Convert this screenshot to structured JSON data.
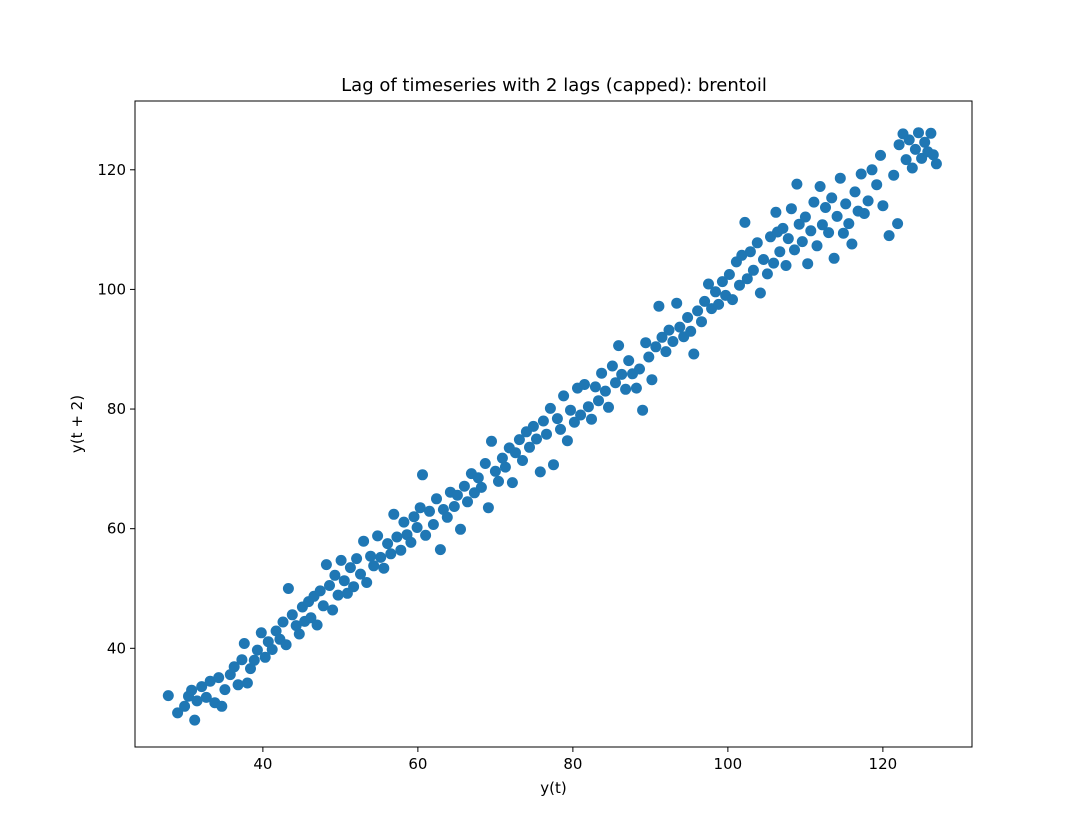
{
  "chart_data": {
    "type": "scatter",
    "title": "Lag of timeseries with 2 lags (capped):  brentoil",
    "xlabel": "y(t)",
    "ylabel": "y(t + 2)",
    "xlim": [
      23.5,
      131.5
    ],
    "ylim": [
      23.5,
      131.5
    ],
    "xticks": [
      40,
      60,
      80,
      100,
      120
    ],
    "yticks": [
      40,
      60,
      80,
      100,
      120
    ],
    "grid": false,
    "color": "#1f77b4",
    "series": [
      {
        "points": [
          [
            27.8,
            32.1
          ],
          [
            29.0,
            29.2
          ],
          [
            29.9,
            30.3
          ],
          [
            30.4,
            32.0
          ],
          [
            30.8,
            33.0
          ],
          [
            31.2,
            28.0
          ],
          [
            31.5,
            31.2
          ],
          [
            32.1,
            33.6
          ],
          [
            32.7,
            31.8
          ],
          [
            33.2,
            34.5
          ],
          [
            33.8,
            30.9
          ],
          [
            34.3,
            35.1
          ],
          [
            34.7,
            30.3
          ],
          [
            35.1,
            33.1
          ],
          [
            35.8,
            35.6
          ],
          [
            36.3,
            36.9
          ],
          [
            36.8,
            33.9
          ],
          [
            37.3,
            38.1
          ],
          [
            37.6,
            40.8
          ],
          [
            38.0,
            34.2
          ],
          [
            38.4,
            36.6
          ],
          [
            38.9,
            38.0
          ],
          [
            39.3,
            39.7
          ],
          [
            39.8,
            42.6
          ],
          [
            40.3,
            38.5
          ],
          [
            40.7,
            41.1
          ],
          [
            41.2,
            39.8
          ],
          [
            41.7,
            42.9
          ],
          [
            42.2,
            41.5
          ],
          [
            42.6,
            44.4
          ],
          [
            43.0,
            40.6
          ],
          [
            43.3,
            50.0
          ],
          [
            43.8,
            45.6
          ],
          [
            44.3,
            43.8
          ],
          [
            44.7,
            42.4
          ],
          [
            45.1,
            46.9
          ],
          [
            45.4,
            44.5
          ],
          [
            45.9,
            47.8
          ],
          [
            46.2,
            45.1
          ],
          [
            46.6,
            48.7
          ],
          [
            47.0,
            43.9
          ],
          [
            47.4,
            49.6
          ],
          [
            47.8,
            47.1
          ],
          [
            48.2,
            54.0
          ],
          [
            48.6,
            50.5
          ],
          [
            49.0,
            46.4
          ],
          [
            49.3,
            52.2
          ],
          [
            49.7,
            48.9
          ],
          [
            50.1,
            54.7
          ],
          [
            50.5,
            51.3
          ],
          [
            50.9,
            49.2
          ],
          [
            51.3,
            53.5
          ],
          [
            51.7,
            50.3
          ],
          [
            52.1,
            55.0
          ],
          [
            52.6,
            52.4
          ],
          [
            53.0,
            57.9
          ],
          [
            53.4,
            51.0
          ],
          [
            53.9,
            55.4
          ],
          [
            54.3,
            53.8
          ],
          [
            54.8,
            58.8
          ],
          [
            55.2,
            55.2
          ],
          [
            55.6,
            53.4
          ],
          [
            56.1,
            57.5
          ],
          [
            56.5,
            55.8
          ],
          [
            56.9,
            62.4
          ],
          [
            57.3,
            58.6
          ],
          [
            57.8,
            56.4
          ],
          [
            58.2,
            61.1
          ],
          [
            58.6,
            59.0
          ],
          [
            59.1,
            57.7
          ],
          [
            59.5,
            62.0
          ],
          [
            59.9,
            60.2
          ],
          [
            60.3,
            63.5
          ],
          [
            60.6,
            69.0
          ],
          [
            61.0,
            58.9
          ],
          [
            61.5,
            62.9
          ],
          [
            62.0,
            60.7
          ],
          [
            62.4,
            65.0
          ],
          [
            62.9,
            56.5
          ],
          [
            63.3,
            63.2
          ],
          [
            63.8,
            61.9
          ],
          [
            64.2,
            66.1
          ],
          [
            64.7,
            63.7
          ],
          [
            65.1,
            65.6
          ],
          [
            65.5,
            59.9
          ],
          [
            66.0,
            67.1
          ],
          [
            66.4,
            64.5
          ],
          [
            66.9,
            69.2
          ],
          [
            67.3,
            66.0
          ],
          [
            67.8,
            68.5
          ],
          [
            68.2,
            66.9
          ],
          [
            68.7,
            70.9
          ],
          [
            69.1,
            63.5
          ],
          [
            69.5,
            74.6
          ],
          [
            70.0,
            69.6
          ],
          [
            70.4,
            67.9
          ],
          [
            70.9,
            71.8
          ],
          [
            71.3,
            70.3
          ],
          [
            71.8,
            73.5
          ],
          [
            72.2,
            67.7
          ],
          [
            72.6,
            72.7
          ],
          [
            73.1,
            74.9
          ],
          [
            73.5,
            71.4
          ],
          [
            74.0,
            76.2
          ],
          [
            74.4,
            73.6
          ],
          [
            74.9,
            77.1
          ],
          [
            75.3,
            75.0
          ],
          [
            75.8,
            69.5
          ],
          [
            76.2,
            78.0
          ],
          [
            76.6,
            75.8
          ],
          [
            77.1,
            80.1
          ],
          [
            77.5,
            70.7
          ],
          [
            78.0,
            78.4
          ],
          [
            78.4,
            76.6
          ],
          [
            78.8,
            82.2
          ],
          [
            79.3,
            74.7
          ],
          [
            79.7,
            79.8
          ],
          [
            80.2,
            77.8
          ],
          [
            80.6,
            83.5
          ],
          [
            81.0,
            79.0
          ],
          [
            81.5,
            84.1
          ],
          [
            82.0,
            80.4
          ],
          [
            82.4,
            78.3
          ],
          [
            82.9,
            83.7
          ],
          [
            83.3,
            81.4
          ],
          [
            83.7,
            86.0
          ],
          [
            84.2,
            83.0
          ],
          [
            84.6,
            80.3
          ],
          [
            85.1,
            87.2
          ],
          [
            85.5,
            84.4
          ],
          [
            85.9,
            90.6
          ],
          [
            86.3,
            85.8
          ],
          [
            86.8,
            83.3
          ],
          [
            87.2,
            88.1
          ],
          [
            87.7,
            85.9
          ],
          [
            88.2,
            83.5
          ],
          [
            88.6,
            86.7
          ],
          [
            89.0,
            79.8
          ],
          [
            89.4,
            91.1
          ],
          [
            89.8,
            88.7
          ],
          [
            90.2,
            84.9
          ],
          [
            90.7,
            90.4
          ],
          [
            91.1,
            97.2
          ],
          [
            91.5,
            92.0
          ],
          [
            92.0,
            89.6
          ],
          [
            92.4,
            93.2
          ],
          [
            92.9,
            91.3
          ],
          [
            93.4,
            97.7
          ],
          [
            93.8,
            93.7
          ],
          [
            94.3,
            92.1
          ],
          [
            94.8,
            95.3
          ],
          [
            95.2,
            93.0
          ],
          [
            95.6,
            89.2
          ],
          [
            96.1,
            96.4
          ],
          [
            96.6,
            94.6
          ],
          [
            97.0,
            98.0
          ],
          [
            97.5,
            100.9
          ],
          [
            97.9,
            96.8
          ],
          [
            98.4,
            99.6
          ],
          [
            98.8,
            97.5
          ],
          [
            99.3,
            101.3
          ],
          [
            99.7,
            99.0
          ],
          [
            100.2,
            102.5
          ],
          [
            100.6,
            98.3
          ],
          [
            101.1,
            104.6
          ],
          [
            101.5,
            100.7
          ],
          [
            101.8,
            105.7
          ],
          [
            102.2,
            111.2
          ],
          [
            102.5,
            101.8
          ],
          [
            102.9,
            106.3
          ],
          [
            103.3,
            103.2
          ],
          [
            103.8,
            107.8
          ],
          [
            104.2,
            99.4
          ],
          [
            104.6,
            105.0
          ],
          [
            105.1,
            102.6
          ],
          [
            105.5,
            108.8
          ],
          [
            105.9,
            104.4
          ],
          [
            106.2,
            112.9
          ],
          [
            106.4,
            109.6
          ],
          [
            106.7,
            106.3
          ],
          [
            107.1,
            110.2
          ],
          [
            107.5,
            104.0
          ],
          [
            107.8,
            108.5
          ],
          [
            108.2,
            113.5
          ],
          [
            108.6,
            106.6
          ],
          [
            108.9,
            117.6
          ],
          [
            109.2,
            110.9
          ],
          [
            109.6,
            108.0
          ],
          [
            110.0,
            112.1
          ],
          [
            110.3,
            104.3
          ],
          [
            110.7,
            109.8
          ],
          [
            111.1,
            114.6
          ],
          [
            111.5,
            107.3
          ],
          [
            111.9,
            117.2
          ],
          [
            112.2,
            110.8
          ],
          [
            112.6,
            113.7
          ],
          [
            113.0,
            109.5
          ],
          [
            113.4,
            115.3
          ],
          [
            113.7,
            105.2
          ],
          [
            114.1,
            112.2
          ],
          [
            114.5,
            118.6
          ],
          [
            114.9,
            109.4
          ],
          [
            115.2,
            114.3
          ],
          [
            115.6,
            111.0
          ],
          [
            116.0,
            107.6
          ],
          [
            116.4,
            116.3
          ],
          [
            116.8,
            113.1
          ],
          [
            117.2,
            119.3
          ],
          [
            117.6,
            112.7
          ],
          [
            118.1,
            114.8
          ],
          [
            118.6,
            120.0
          ],
          [
            119.2,
            117.5
          ],
          [
            119.7,
            122.4
          ],
          [
            120.0,
            114.0
          ],
          [
            120.8,
            109.0
          ],
          [
            121.4,
            119.1
          ],
          [
            121.9,
            111.0
          ],
          [
            122.1,
            124.2
          ],
          [
            122.6,
            126.0
          ],
          [
            123.0,
            121.7
          ],
          [
            123.4,
            125.0
          ],
          [
            123.8,
            120.3
          ],
          [
            124.2,
            123.4
          ],
          [
            124.6,
            126.2
          ],
          [
            125.0,
            121.9
          ],
          [
            125.4,
            124.6
          ],
          [
            125.8,
            123.0
          ],
          [
            126.2,
            126.1
          ],
          [
            126.5,
            122.5
          ],
          [
            126.9,
            121.0
          ]
        ]
      }
    ]
  }
}
